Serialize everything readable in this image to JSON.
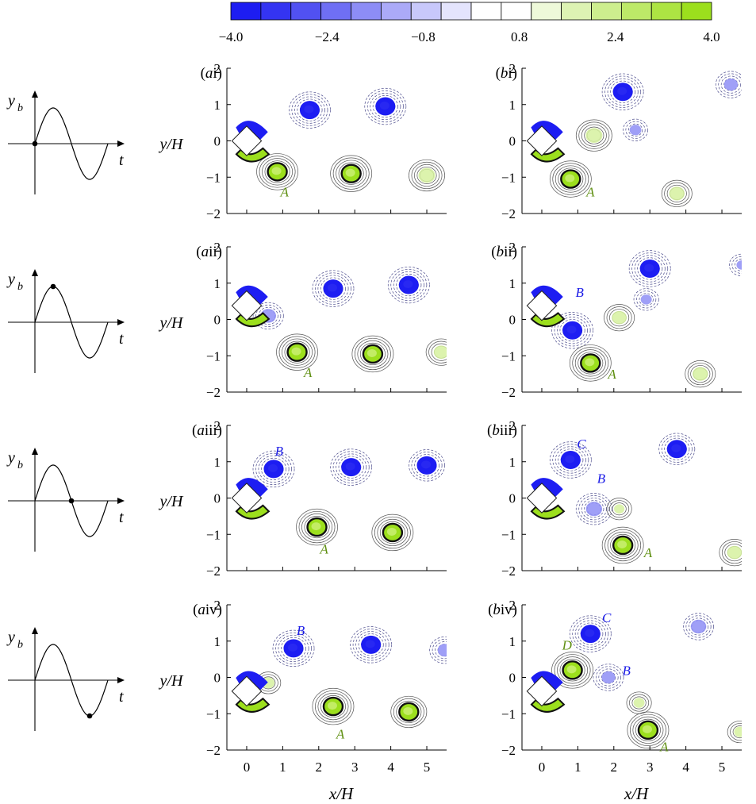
{
  "colorbar": {
    "colors": [
      "#1d1df2",
      "#3434f2",
      "#5151f2",
      "#6f6ff4",
      "#8d8df6",
      "#abaaf8",
      "#c8c8fb",
      "#e4e4fd",
      "#ffffff",
      "#ffffff",
      "#eef9d9",
      "#ddf3b3",
      "#cdee8e",
      "#bde968",
      "#ade443",
      "#9cdf1d"
    ],
    "tick_labels": [
      "−4.0",
      "−2.4",
      "−0.8",
      "0.8",
      "2.4",
      "4.0"
    ]
  },
  "chart_data": {
    "type": "contour",
    "xlabel": "x/H",
    "ylabel": "y/H",
    "xlim": [
      -0.55,
      5.55
    ],
    "ylim": [
      -2,
      2
    ],
    "xticks": [
      0,
      1,
      2,
      3,
      4,
      5
    ],
    "yticks": [
      -2,
      -1,
      0,
      1,
      2
    ],
    "colorbar_range": [
      -4.0,
      4.0
    ],
    "colorbar_ticks": [
      -4.0,
      -2.4,
      -0.8,
      0.8,
      2.4,
      4.0
    ],
    "bluff_body": {
      "shape": "square rotated 45 degrees",
      "center_x": 0,
      "center_y_by_row": [
        0,
        0.38,
        0,
        -0.38
      ]
    },
    "phases": [
      {
        "label": "i",
        "yb": 0
      },
      {
        "label": "ii",
        "yb": 1
      },
      {
        "label": "iii",
        "yb": 0
      },
      {
        "label": "iv",
        "yb": -1
      }
    ],
    "panels": [
      {
        "label": "ai",
        "vortices": [
          {
            "x": 1.75,
            "y": 0.85,
            "sign": -1,
            "strength": 1.0
          },
          {
            "x": 3.85,
            "y": 0.95,
            "sign": -1,
            "strength": 1.0
          },
          {
            "x": 0.85,
            "y": -0.85,
            "sign": 1,
            "strength": 1.0
          },
          {
            "x": 2.9,
            "y": -0.9,
            "sign": 1,
            "strength": 0.95
          },
          {
            "x": 5.0,
            "y": -0.95,
            "sign": 1,
            "strength": 0.7
          }
        ],
        "annotations": [
          {
            "text": "A",
            "x": 1.05,
            "y": -1.4,
            "color": "green"
          }
        ]
      },
      {
        "label": "bi",
        "vortices": [
          {
            "x": 2.25,
            "y": 1.35,
            "sign": -1,
            "strength": 1.0
          },
          {
            "x": 5.25,
            "y": 1.55,
            "sign": -1,
            "strength": 0.45
          },
          {
            "x": 2.6,
            "y": 0.3,
            "sign": -1,
            "strength": 0.3
          },
          {
            "x": 1.45,
            "y": 0.15,
            "sign": 1,
            "strength": 0.7
          },
          {
            "x": 0.8,
            "y": -1.05,
            "sign": 1,
            "strength": 1.0
          },
          {
            "x": 3.75,
            "y": -1.45,
            "sign": 1,
            "strength": 0.6
          }
        ],
        "annotations": [
          {
            "text": "A",
            "x": 1.35,
            "y": -1.4,
            "color": "green"
          }
        ]
      },
      {
        "label": "aii",
        "vortices": [
          {
            "x": 0.6,
            "y": 0.1,
            "sign": -1,
            "strength": 0.6
          },
          {
            "x": 2.4,
            "y": 0.85,
            "sign": -1,
            "strength": 1.0
          },
          {
            "x": 4.5,
            "y": 0.95,
            "sign": -1,
            "strength": 1.0
          },
          {
            "x": 1.4,
            "y": -0.9,
            "sign": 1,
            "strength": 1.0
          },
          {
            "x": 3.5,
            "y": -0.95,
            "sign": 1,
            "strength": 0.95
          },
          {
            "x": 5.4,
            "y": -0.9,
            "sign": 1,
            "strength": 0.55
          }
        ],
        "annotations": [
          {
            "text": "A",
            "x": 1.7,
            "y": -1.45,
            "color": "green"
          }
        ]
      },
      {
        "label": "bii",
        "vortices": [
          {
            "x": 3.0,
            "y": 1.4,
            "sign": -1,
            "strength": 1.0
          },
          {
            "x": 0.85,
            "y": -0.3,
            "sign": -1,
            "strength": 1.0
          },
          {
            "x": 2.9,
            "y": 0.55,
            "sign": -1,
            "strength": 0.25
          },
          {
            "x": 5.55,
            "y": 1.5,
            "sign": -1,
            "strength": 0.2
          },
          {
            "x": 2.15,
            "y": 0.05,
            "sign": 1,
            "strength": 0.55
          },
          {
            "x": 1.35,
            "y": -1.2,
            "sign": 1,
            "strength": 1.0
          },
          {
            "x": 4.4,
            "y": -1.5,
            "sign": 1,
            "strength": 0.6
          }
        ],
        "annotations": [
          {
            "text": "B",
            "x": 1.05,
            "y": 0.75,
            "color": "blue"
          },
          {
            "text": "A",
            "x": 1.95,
            "y": -1.5,
            "color": "green"
          }
        ]
      },
      {
        "label": "aiii",
        "vortices": [
          {
            "x": 0.75,
            "y": 0.8,
            "sign": -1,
            "strength": 1.0
          },
          {
            "x": 2.9,
            "y": 0.85,
            "sign": -1,
            "strength": 1.0
          },
          {
            "x": 5.0,
            "y": 0.9,
            "sign": -1,
            "strength": 0.8
          },
          {
            "x": 1.95,
            "y": -0.8,
            "sign": 1,
            "strength": 1.0
          },
          {
            "x": 4.05,
            "y": -0.95,
            "sign": 1,
            "strength": 0.95
          }
        ],
        "annotations": [
          {
            "text": "B",
            "x": 0.9,
            "y": 1.3,
            "color": "blue"
          },
          {
            "text": "A",
            "x": 2.15,
            "y": -1.4,
            "color": "green"
          }
        ]
      },
      {
        "label": "biii",
        "vortices": [
          {
            "x": 0.8,
            "y": 1.05,
            "sign": -1,
            "strength": 1.0
          },
          {
            "x": 1.45,
            "y": -0.3,
            "sign": -1,
            "strength": 0.65
          },
          {
            "x": 3.75,
            "y": 1.35,
            "sign": -1,
            "strength": 0.8
          },
          {
            "x": 2.15,
            "y": -0.3,
            "sign": 1,
            "strength": 0.2
          },
          {
            "x": 2.25,
            "y": -1.3,
            "sign": 1,
            "strength": 1.0
          },
          {
            "x": 5.35,
            "y": -1.5,
            "sign": 1,
            "strength": 0.55
          }
        ],
        "annotations": [
          {
            "text": "C",
            "x": 1.1,
            "y": 1.5,
            "color": "blue"
          },
          {
            "text": "B",
            "x": 1.65,
            "y": 0.55,
            "color": "blue"
          },
          {
            "text": "A",
            "x": 2.95,
            "y": -1.5,
            "color": "green"
          }
        ]
      },
      {
        "label": "aiv",
        "vortices": [
          {
            "x": 1.3,
            "y": 0.8,
            "sign": -1,
            "strength": 1.0
          },
          {
            "x": 3.45,
            "y": 0.9,
            "sign": -1,
            "strength": 1.0
          },
          {
            "x": 5.5,
            "y": 0.75,
            "sign": -1,
            "strength": 0.5
          },
          {
            "x": 0.6,
            "y": -0.15,
            "sign": 1,
            "strength": 0.35
          },
          {
            "x": 2.4,
            "y": -0.8,
            "sign": 1,
            "strength": 1.0
          },
          {
            "x": 4.5,
            "y": -0.95,
            "sign": 1,
            "strength": 0.85
          }
        ],
        "annotations": [
          {
            "text": "B",
            "x": 1.5,
            "y": 1.3,
            "color": "blue"
          },
          {
            "text": "A",
            "x": 2.6,
            "y": -1.55,
            "color": "green"
          }
        ]
      },
      {
        "label": "biv",
        "vortices": [
          {
            "x": 1.35,
            "y": 1.2,
            "sign": -1,
            "strength": 1.0
          },
          {
            "x": 1.85,
            "y": 0.0,
            "sign": -1,
            "strength": 0.45
          },
          {
            "x": 4.35,
            "y": 1.4,
            "sign": -1,
            "strength": 0.6
          },
          {
            "x": 0.85,
            "y": 0.2,
            "sign": 1,
            "strength": 1.0
          },
          {
            "x": 2.7,
            "y": -0.7,
            "sign": 1,
            "strength": 0.25
          },
          {
            "x": 2.95,
            "y": -1.45,
            "sign": 1,
            "strength": 1.0
          },
          {
            "x": 5.5,
            "y": -1.5,
            "sign": 1,
            "strength": 0.3
          }
        ],
        "annotations": [
          {
            "text": "C",
            "x": 1.8,
            "y": 1.65,
            "color": "blue"
          },
          {
            "text": "D",
            "x": 0.7,
            "y": 0.9,
            "color": "green"
          },
          {
            "text": "B",
            "x": 2.35,
            "y": 0.2,
            "color": "blue"
          },
          {
            "text": "A",
            "x": 3.4,
            "y": -1.9,
            "color": "green"
          }
        ]
      }
    ]
  },
  "phase_plot": {
    "ylabel": "y",
    "ylabel_sub": "b",
    "xlabel": "t"
  }
}
